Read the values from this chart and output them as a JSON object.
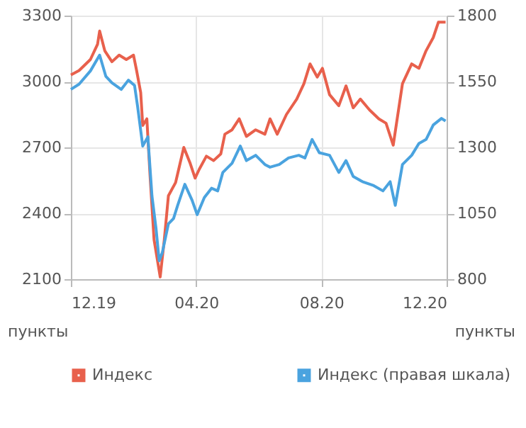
{
  "chart_data": {
    "type": "line",
    "ylabel": "пункты",
    "y2label": "пункты",
    "xlim": [
      "2019-12-01",
      "2020-12-01"
    ],
    "xticks": [
      {
        "value": "2019-12-01",
        "label": "12.19"
      },
      {
        "value": "2020-04-01",
        "label": "04.20"
      },
      {
        "value": "2020-08-01",
        "label": "08.20"
      },
      {
        "value": "2020-12-01",
        "label": "12.20"
      }
    ],
    "ylim": [
      2100,
      3300
    ],
    "yticks": [
      2100,
      2400,
      2700,
      3000,
      3300
    ],
    "y2lim": [
      800,
      1800
    ],
    "y2ticks": [
      800,
      1050,
      1300,
      1550,
      1800
    ],
    "grid": true,
    "legend": "bottom",
    "marker": "none",
    "line_style": "solid",
    "series": [
      {
        "name": "Индекс",
        "color": "#e8604c",
        "x": [
          "2019-12-01",
          "2019-12-09",
          "2019-12-20",
          "2019-12-27",
          "2019-12-29",
          "2020-01-03",
          "2020-01-10",
          "2020-01-17",
          "2020-01-24",
          "2020-01-31",
          "2020-02-03",
          "2020-02-07",
          "2020-02-09",
          "2020-02-13",
          "2020-02-16",
          "2020-02-20",
          "2020-02-26",
          "2020-03-01",
          "2020-03-05",
          "2020-03-12",
          "2020-03-20",
          "2020-03-26",
          "2020-03-31",
          "2020-04-04",
          "2020-04-11",
          "2020-04-18",
          "2020-04-25",
          "2020-04-29",
          "2020-05-06",
          "2020-05-13",
          "2020-05-20",
          "2020-05-29",
          "2020-06-07",
          "2020-06-12",
          "2020-06-19",
          "2020-06-28",
          "2020-07-08",
          "2020-07-15",
          "2020-07-21",
          "2020-07-28",
          "2020-08-02",
          "2020-08-09",
          "2020-08-18",
          "2020-08-25",
          "2020-09-01",
          "2020-09-08",
          "2020-09-17",
          "2020-09-26",
          "2020-10-03",
          "2020-10-10",
          "2020-10-19",
          "2020-10-28",
          "2020-11-04",
          "2020-11-11",
          "2020-11-18",
          "2020-11-23",
          "2020-11-30"
        ],
        "values": [
          3030,
          3050,
          3100,
          3170,
          3230,
          3140,
          3090,
          3120,
          3100,
          3120,
          3050,
          2950,
          2800,
          2830,
          2580,
          2280,
          2110,
          2280,
          2480,
          2540,
          2700,
          2630,
          2560,
          2600,
          2660,
          2640,
          2670,
          2760,
          2780,
          2830,
          2750,
          2780,
          2760,
          2830,
          2760,
          2850,
          2920,
          2990,
          3080,
          3020,
          3060,
          2940,
          2890,
          2980,
          2880,
          2920,
          2870,
          2830,
          2810,
          2710,
          2990,
          3080,
          3060,
          3140,
          3200,
          3270,
          3270
        ]
      },
      {
        "name": "Индекс (правая шкала)",
        "color": "#4aa3df",
        "axis": "y2",
        "x": [
          "2019-12-01",
          "2019-12-09",
          "2019-12-20",
          "2019-12-29",
          "2020-01-04",
          "2020-01-10",
          "2020-01-19",
          "2020-01-26",
          "2020-02-01",
          "2020-02-04",
          "2020-02-09",
          "2020-02-14",
          "2020-02-18",
          "2020-02-22",
          "2020-02-25",
          "2020-02-28",
          "2020-03-05",
          "2020-03-10",
          "2020-03-14",
          "2020-03-21",
          "2020-03-28",
          "2020-04-02",
          "2020-04-09",
          "2020-04-16",
          "2020-04-22",
          "2020-04-27",
          "2020-05-06",
          "2020-05-14",
          "2020-05-20",
          "2020-05-29",
          "2020-06-07",
          "2020-06-12",
          "2020-06-21",
          "2020-06-30",
          "2020-07-10",
          "2020-07-16",
          "2020-07-23",
          "2020-07-30",
          "2020-08-09",
          "2020-08-18",
          "2020-08-25",
          "2020-09-01",
          "2020-09-10",
          "2020-09-21",
          "2020-09-30",
          "2020-10-07",
          "2020-10-12",
          "2020-10-19",
          "2020-10-28",
          "2020-11-04",
          "2020-11-11",
          "2020-11-18",
          "2020-11-26",
          "2020-11-30"
        ],
        "values": [
          1520,
          1540,
          1590,
          1650,
          1570,
          1545,
          1520,
          1555,
          1535,
          1455,
          1305,
          1340,
          1115,
          990,
          870,
          900,
          1010,
          1030,
          1080,
          1160,
          1100,
          1045,
          1110,
          1145,
          1135,
          1205,
          1240,
          1305,
          1250,
          1270,
          1235,
          1225,
          1235,
          1260,
          1270,
          1260,
          1330,
          1280,
          1270,
          1205,
          1250,
          1190,
          1170,
          1155,
          1135,
          1170,
          1080,
          1235,
          1270,
          1315,
          1330,
          1385,
          1410,
          1400
        ]
      }
    ]
  }
}
